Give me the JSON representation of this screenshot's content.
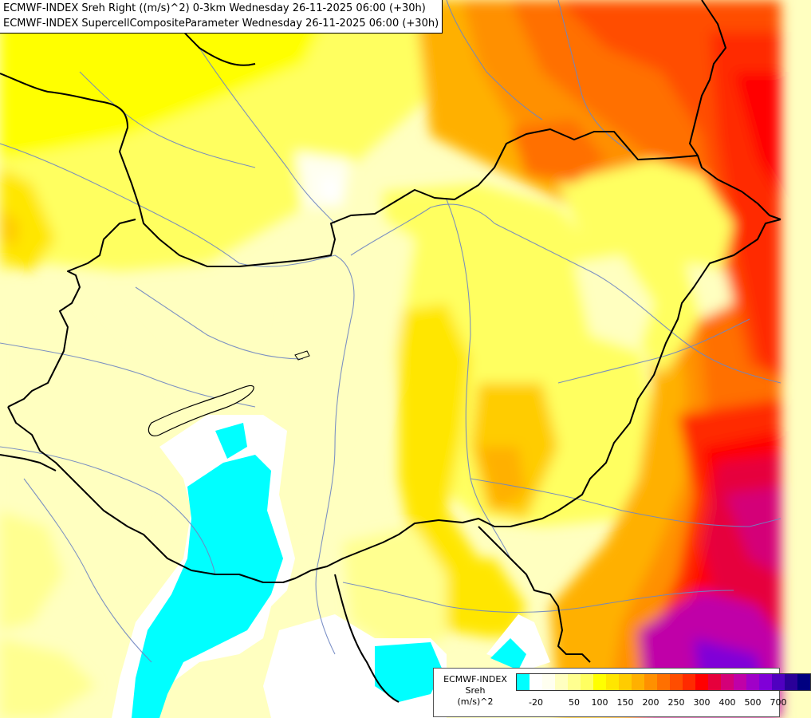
{
  "title": {
    "line1": "ECMWF-INDEX Sreh Right ((m/s)^2) 0-3km Wednesday 26-11-2025 06:00 (+30h)",
    "line2": "ECMWF-INDEX SupercellCompositeParameter Wednesday 26-11-2025 06:00 (+30h)"
  },
  "legend": {
    "line1": "ECMWF-INDEX",
    "line2": "Sreh",
    "line3": "(m/s)^2",
    "colors": [
      "#00ffff",
      "#ffffff",
      "#fffff0",
      "#ffffc0",
      "#ffff90",
      "#ffff60",
      "#ffff00",
      "#ffe600",
      "#ffcc00",
      "#ffb000",
      "#ff9000",
      "#ff7000",
      "#ff4d00",
      "#ff2a00",
      "#ff0000",
      "#e6003c",
      "#d40078",
      "#c000a8",
      "#a000c8",
      "#8000d8",
      "#5000c0",
      "#2a0098",
      "#000080"
    ],
    "ticks": [
      "-20",
      "50",
      "100",
      "150",
      "200",
      "250",
      "300",
      "400",
      "500",
      "700"
    ]
  },
  "map": {
    "background": "#ffffc0",
    "border_color": "#000000",
    "river_color": "#6f86c2"
  }
}
